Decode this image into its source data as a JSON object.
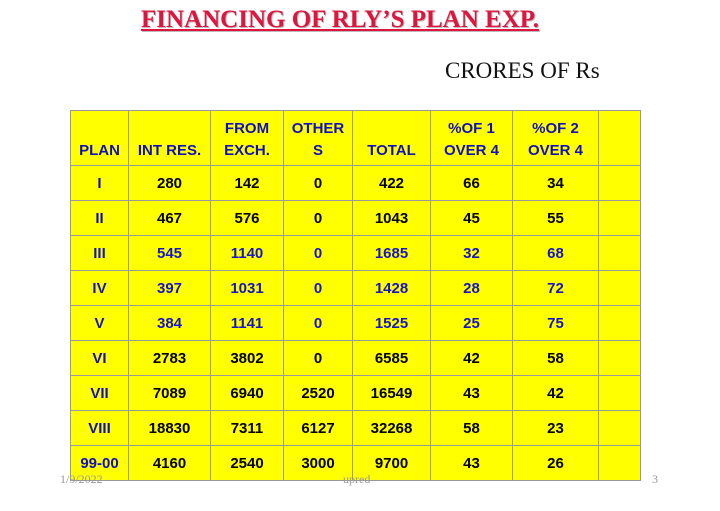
{
  "header": {
    "title": "FINANCING OF RLY’S PLAN EXP.",
    "unit": "CRORES OF Rs"
  },
  "table": {
    "columns": [
      [
        "PLAN"
      ],
      [
        "INT RES."
      ],
      [
        "FROM",
        "EXCH."
      ],
      [
        "OTHER",
        "S"
      ],
      [
        "TOTAL"
      ],
      [
        "%OF 1",
        "OVER 4"
      ],
      [
        "%OF 2",
        "OVER 4"
      ]
    ],
    "rows": [
      [
        "I",
        280,
        142,
        0,
        422,
        66,
        34
      ],
      [
        "II",
        467,
        576,
        0,
        1043,
        45,
        55
      ],
      [
        "III",
        545,
        1140,
        0,
        1685,
        32,
        68
      ],
      [
        "IV",
        397,
        1031,
        0,
        1428,
        28,
        72
      ],
      [
        "V",
        384,
        1141,
        0,
        1525,
        25,
        75
      ],
      [
        "VI",
        2783,
        3802,
        0,
        6585,
        42,
        58
      ],
      [
        "VII",
        7089,
        6940,
        2520,
        16549,
        43,
        42
      ],
      [
        "VIII",
        18830,
        7311,
        6127,
        32268,
        58,
        23
      ],
      [
        "99-00",
        4160,
        2540,
        3000,
        9700,
        43,
        26
      ]
    ]
  },
  "footer": {
    "date": "1/9/2022",
    "author": "upred",
    "page": "3"
  }
}
